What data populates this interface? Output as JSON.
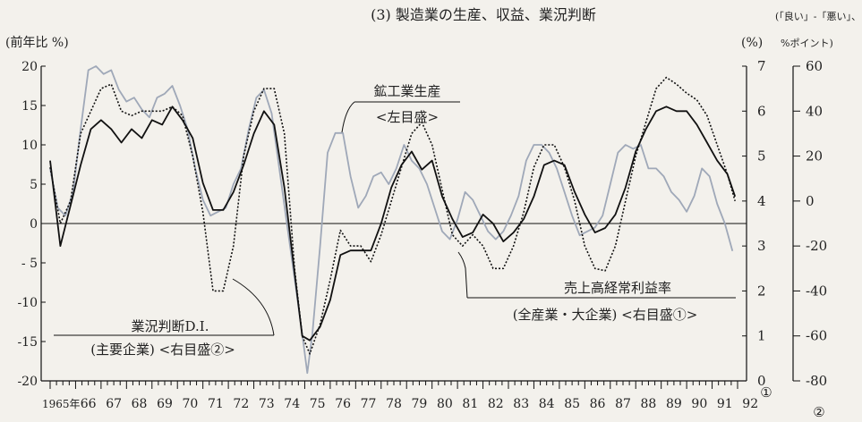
{
  "chart_data": {
    "type": "line",
    "title": "(3) 製造業の生産、収益、業況判断",
    "left_axis": {
      "unit": "(前年比 %)",
      "min": -20,
      "max": 20,
      "ticks": [
        "20",
        "15",
        "10",
        "5",
        "0",
        "- 5",
        "-10",
        "-15",
        "-20"
      ]
    },
    "right1_axis": {
      "unit": "(%)",
      "min": 0,
      "max": 7,
      "ticks": [
        "7",
        "6",
        "5",
        "4",
        "3",
        "2",
        "1",
        "0"
      ],
      "marker": "①"
    },
    "right2_axis": {
      "unit_top": "(「良い」-「悪い」、",
      "unit_bottom": "%ポイント)",
      "min": -80,
      "max": 60,
      "ticks": [
        "60",
        "40",
        "20",
        "0",
        "-20",
        "-40",
        "-60",
        "-80"
      ],
      "marker": "②"
    },
    "x_labels": [
      "1965年",
      "66",
      "67",
      "68",
      "69",
      "70",
      "71",
      "72",
      "73",
      "74",
      "75",
      "76",
      "77",
      "78",
      "79",
      "80",
      "81",
      "82",
      "83",
      "84",
      "85",
      "86",
      "87",
      "88",
      "89",
      "90",
      "91",
      "92"
    ],
    "annotations": {
      "production": [
        "鉱工業生産",
        "<左目盛>"
      ],
      "profit": [
        "売上高経常利益率",
        "(全産業・大企業) <右目盛①>"
      ],
      "di": [
        "業況判断D.I.",
        "(主要企業) <右目盛②>"
      ]
    },
    "series": [
      {
        "name": "鉱工業生産",
        "axis": "left",
        "color": "#9fa8b8",
        "points": [
          [
            1965.0,
            7
          ],
          [
            1965.3,
            2
          ],
          [
            1965.6,
            1
          ],
          [
            1965.9,
            4
          ],
          [
            1966.2,
            12
          ],
          [
            1966.5,
            19.5
          ],
          [
            1966.8,
            20
          ],
          [
            1967.1,
            19
          ],
          [
            1967.4,
            19.5
          ],
          [
            1967.7,
            17
          ],
          [
            1968.0,
            15.5
          ],
          [
            1968.3,
            16
          ],
          [
            1968.6,
            14.5
          ],
          [
            1968.9,
            13.5
          ],
          [
            1969.2,
            16
          ],
          [
            1969.5,
            16.5
          ],
          [
            1969.8,
            17.5
          ],
          [
            1970.1,
            15
          ],
          [
            1970.4,
            12
          ],
          [
            1970.7,
            7
          ],
          [
            1971.0,
            3
          ],
          [
            1971.3,
            1
          ],
          [
            1971.6,
            1.5
          ],
          [
            1971.9,
            2
          ],
          [
            1972.2,
            5
          ],
          [
            1972.5,
            7
          ],
          [
            1972.8,
            12
          ],
          [
            1973.1,
            16
          ],
          [
            1973.4,
            17
          ],
          [
            1973.7,
            14
          ],
          [
            1974.0,
            7
          ],
          [
            1974.3,
            0
          ],
          [
            1974.6,
            -7
          ],
          [
            1974.9,
            -14
          ],
          [
            1975.1,
            -19
          ],
          [
            1975.3,
            -14
          ],
          [
            1975.6,
            -3
          ],
          [
            1975.9,
            9
          ],
          [
            1976.2,
            11.5
          ],
          [
            1976.5,
            11.5
          ],
          [
            1976.8,
            6
          ],
          [
            1977.1,
            2
          ],
          [
            1977.4,
            3.5
          ],
          [
            1977.7,
            6
          ],
          [
            1978.0,
            6.5
          ],
          [
            1978.3,
            5
          ],
          [
            1978.6,
            7
          ],
          [
            1978.9,
            10
          ],
          [
            1979.2,
            8
          ],
          [
            1979.5,
            7
          ],
          [
            1979.8,
            5
          ],
          [
            1980.1,
            2
          ],
          [
            1980.4,
            -1
          ],
          [
            1980.7,
            -2
          ],
          [
            1981.0,
            0.5
          ],
          [
            1981.3,
            4
          ],
          [
            1981.6,
            3
          ],
          [
            1981.9,
            1
          ],
          [
            1982.2,
            -1
          ],
          [
            1982.5,
            -2
          ],
          [
            1982.8,
            -1
          ],
          [
            1983.1,
            1
          ],
          [
            1983.4,
            3.5
          ],
          [
            1983.7,
            8
          ],
          [
            1984.0,
            10
          ],
          [
            1984.3,
            10
          ],
          [
            1984.6,
            9
          ],
          [
            1984.9,
            7
          ],
          [
            1985.2,
            4
          ],
          [
            1985.5,
            1
          ],
          [
            1985.8,
            -1.5
          ],
          [
            1986.1,
            -1
          ],
          [
            1986.4,
            -0.5
          ],
          [
            1986.7,
            1
          ],
          [
            1987.0,
            5
          ],
          [
            1987.3,
            9
          ],
          [
            1987.6,
            10
          ],
          [
            1987.9,
            9.5
          ],
          [
            1988.2,
            10
          ],
          [
            1988.5,
            7
          ],
          [
            1988.8,
            7
          ],
          [
            1989.1,
            6
          ],
          [
            1989.4,
            4
          ],
          [
            1989.7,
            3
          ],
          [
            1990.0,
            1.5
          ],
          [
            1990.3,
            3.5
          ],
          [
            1990.6,
            7
          ],
          [
            1990.9,
            6
          ],
          [
            1991.2,
            2.5
          ],
          [
            1991.5,
            0
          ],
          [
            1991.8,
            -3.5
          ]
        ]
      },
      {
        "name": "売上高経常利益率",
        "axis": "right1",
        "color": "#111111",
        "points": [
          [
            1965.0,
            4.9
          ],
          [
            1965.4,
            3.0
          ],
          [
            1965.8,
            3.9
          ],
          [
            1966.2,
            4.8
          ],
          [
            1966.6,
            5.6
          ],
          [
            1967.0,
            5.8
          ],
          [
            1967.4,
            5.6
          ],
          [
            1967.8,
            5.3
          ],
          [
            1968.2,
            5.6
          ],
          [
            1968.6,
            5.4
          ],
          [
            1969.0,
            5.8
          ],
          [
            1969.4,
            5.7
          ],
          [
            1969.8,
            6.1
          ],
          [
            1970.2,
            5.8
          ],
          [
            1970.6,
            5.4
          ],
          [
            1971.0,
            4.4
          ],
          [
            1971.4,
            3.8
          ],
          [
            1971.8,
            3.8
          ],
          [
            1972.2,
            4.2
          ],
          [
            1972.6,
            4.8
          ],
          [
            1973.0,
            5.5
          ],
          [
            1973.4,
            6.0
          ],
          [
            1973.8,
            5.7
          ],
          [
            1974.2,
            4.3
          ],
          [
            1974.6,
            2.4
          ],
          [
            1974.9,
            1.0
          ],
          [
            1975.2,
            0.9
          ],
          [
            1975.6,
            1.2
          ],
          [
            1976.0,
            1.8
          ],
          [
            1976.4,
            2.8
          ],
          [
            1976.8,
            2.9
          ],
          [
            1977.2,
            2.9
          ],
          [
            1977.6,
            2.9
          ],
          [
            1978.0,
            3.5
          ],
          [
            1978.4,
            4.3
          ],
          [
            1978.8,
            4.8
          ],
          [
            1979.2,
            5.1
          ],
          [
            1979.6,
            4.7
          ],
          [
            1980.0,
            4.9
          ],
          [
            1980.4,
            4.1
          ],
          [
            1980.8,
            3.6
          ],
          [
            1981.2,
            3.2
          ],
          [
            1981.6,
            3.3
          ],
          [
            1982.0,
            3.7
          ],
          [
            1982.4,
            3.5
          ],
          [
            1982.8,
            3.1
          ],
          [
            1983.2,
            3.3
          ],
          [
            1983.6,
            3.6
          ],
          [
            1984.0,
            4.1
          ],
          [
            1984.4,
            4.8
          ],
          [
            1984.8,
            4.9
          ],
          [
            1985.2,
            4.8
          ],
          [
            1985.6,
            4.2
          ],
          [
            1986.0,
            3.7
          ],
          [
            1986.4,
            3.3
          ],
          [
            1986.8,
            3.4
          ],
          [
            1987.2,
            3.7
          ],
          [
            1987.6,
            4.3
          ],
          [
            1988.0,
            5.1
          ],
          [
            1988.4,
            5.6
          ],
          [
            1988.8,
            6.0
          ],
          [
            1989.2,
            6.1
          ],
          [
            1989.6,
            6.0
          ],
          [
            1990.0,
            6.0
          ],
          [
            1990.4,
            5.7
          ],
          [
            1990.8,
            5.3
          ],
          [
            1991.2,
            4.9
          ],
          [
            1991.6,
            4.6
          ],
          [
            1991.9,
            4.1
          ]
        ]
      },
      {
        "name": "業況判断D.I.",
        "axis": "right2",
        "color": "#111111",
        "dashed": true,
        "points": [
          [
            1965.0,
            15
          ],
          [
            1965.4,
            -10
          ],
          [
            1965.8,
            0
          ],
          [
            1966.2,
            30
          ],
          [
            1966.6,
            40
          ],
          [
            1967.0,
            50
          ],
          [
            1967.4,
            52
          ],
          [
            1967.8,
            40
          ],
          [
            1968.2,
            38
          ],
          [
            1968.6,
            40
          ],
          [
            1969.0,
            40
          ],
          [
            1969.4,
            40
          ],
          [
            1969.8,
            42
          ],
          [
            1970.2,
            38
          ],
          [
            1970.6,
            20
          ],
          [
            1971.0,
            -5
          ],
          [
            1971.4,
            -40
          ],
          [
            1971.8,
            -40
          ],
          [
            1972.2,
            -20
          ],
          [
            1972.6,
            20
          ],
          [
            1973.0,
            40
          ],
          [
            1973.4,
            50
          ],
          [
            1973.8,
            50
          ],
          [
            1974.2,
            30
          ],
          [
            1974.6,
            -30
          ],
          [
            1974.9,
            -60
          ],
          [
            1975.2,
            -68
          ],
          [
            1975.6,
            -55
          ],
          [
            1976.0,
            -35
          ],
          [
            1976.4,
            -13
          ],
          [
            1976.8,
            -20
          ],
          [
            1977.2,
            -20
          ],
          [
            1977.6,
            -27
          ],
          [
            1978.0,
            -15
          ],
          [
            1978.4,
            0
          ],
          [
            1978.8,
            15
          ],
          [
            1979.2,
            30
          ],
          [
            1979.6,
            35
          ],
          [
            1980.0,
            25
          ],
          [
            1980.4,
            5
          ],
          [
            1980.8,
            -15
          ],
          [
            1981.2,
            -20
          ],
          [
            1981.6,
            -15
          ],
          [
            1982.0,
            -20
          ],
          [
            1982.4,
            -30
          ],
          [
            1982.8,
            -30
          ],
          [
            1983.2,
            -20
          ],
          [
            1983.6,
            -5
          ],
          [
            1984.0,
            15
          ],
          [
            1984.4,
            25
          ],
          [
            1984.8,
            25
          ],
          [
            1985.2,
            15
          ],
          [
            1985.6,
            0
          ],
          [
            1986.0,
            -20
          ],
          [
            1986.4,
            -30
          ],
          [
            1986.8,
            -31
          ],
          [
            1987.2,
            -20
          ],
          [
            1987.6,
            0
          ],
          [
            1988.0,
            20
          ],
          [
            1988.4,
            35
          ],
          [
            1988.8,
            50
          ],
          [
            1989.2,
            55
          ],
          [
            1989.6,
            52
          ],
          [
            1990.0,
            48
          ],
          [
            1990.4,
            45
          ],
          [
            1990.8,
            38
          ],
          [
            1991.2,
            25
          ],
          [
            1991.6,
            12
          ],
          [
            1991.9,
            0
          ]
        ]
      }
    ]
  }
}
